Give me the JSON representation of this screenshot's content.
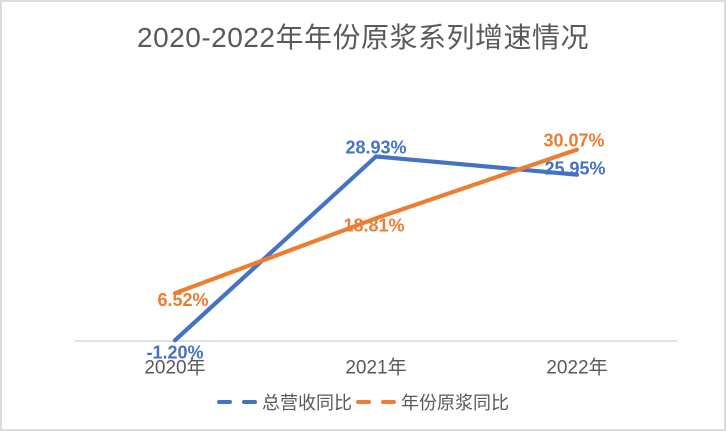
{
  "window": {
    "background": "#ffffff",
    "border_color": "#dcdcdc"
  },
  "chart_data": {
    "type": "line",
    "title": "2020-2022年年份原浆系列增速情况",
    "title_color": "#595959",
    "categories": [
      "2020年",
      "2021年",
      "2022年"
    ],
    "series": [
      {
        "name": "总营收同比",
        "color": "#4472C4",
        "values": [
          -1.2,
          28.93,
          25.95
        ],
        "point_labels": [
          "-1.20%",
          "28.93%",
          "25.95%"
        ]
      },
      {
        "name": "年份原浆同比",
        "color": "#ED7D31",
        "values": [
          6.52,
          18.81,
          30.07
        ],
        "point_labels": [
          "6.52%",
          "18.81%",
          "30.07%"
        ]
      }
    ],
    "xlabel": "",
    "ylabel": "",
    "ylim": [
      -5,
      35
    ],
    "grid": false,
    "y_axis_visible": false,
    "x_axis_line_color": "#d9d9d9",
    "tick_label_color": "#595959",
    "legend_position": "bottom"
  }
}
